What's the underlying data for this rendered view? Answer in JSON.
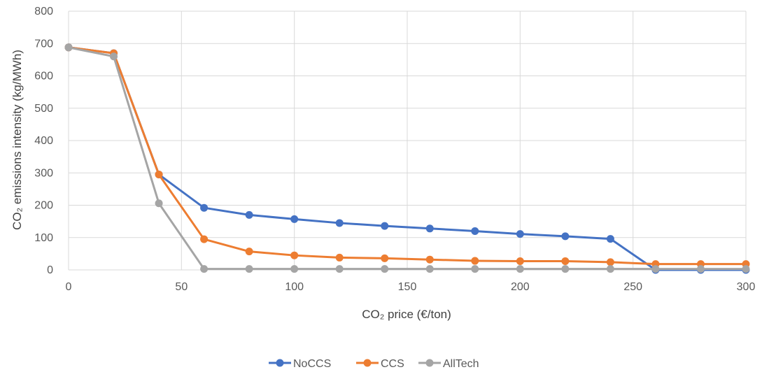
{
  "chart_data": {
    "type": "line",
    "title": "",
    "xlabel": "CO₂ price (€/ton)",
    "ylabel": "CO₂ emissions intensity (kg/MWh)",
    "xlim": [
      0,
      300
    ],
    "ylim": [
      0,
      800
    ],
    "x_ticks": [
      "0",
      "50",
      "100",
      "150",
      "200",
      "250",
      "300"
    ],
    "y_ticks": [
      "0",
      "100",
      "200",
      "300",
      "400",
      "500",
      "600",
      "700",
      "800"
    ],
    "grid": true,
    "legend_position": "bottom",
    "x": [
      0,
      20,
      40,
      60,
      80,
      100,
      120,
      140,
      160,
      180,
      200,
      220,
      240,
      260,
      280,
      300
    ],
    "series": [
      {
        "name": "NoCCS",
        "color": "#4472C4",
        "values": [
          688,
          670,
          295,
          192,
          170,
          157,
          145,
          136,
          128,
          120,
          111,
          104,
          96,
          0,
          0,
          0
        ]
      },
      {
        "name": "CCS",
        "color": "#ED7D31",
        "values": [
          688,
          670,
          295,
          95,
          57,
          45,
          38,
          36,
          32,
          28,
          27,
          27,
          24,
          18,
          18,
          18
        ]
      },
      {
        "name": "AllTech",
        "color": "#A5A5A5",
        "values": [
          688,
          660,
          206,
          3,
          3,
          3,
          3,
          3,
          3,
          3,
          3,
          3,
          3,
          3,
          3,
          3
        ]
      }
    ]
  }
}
